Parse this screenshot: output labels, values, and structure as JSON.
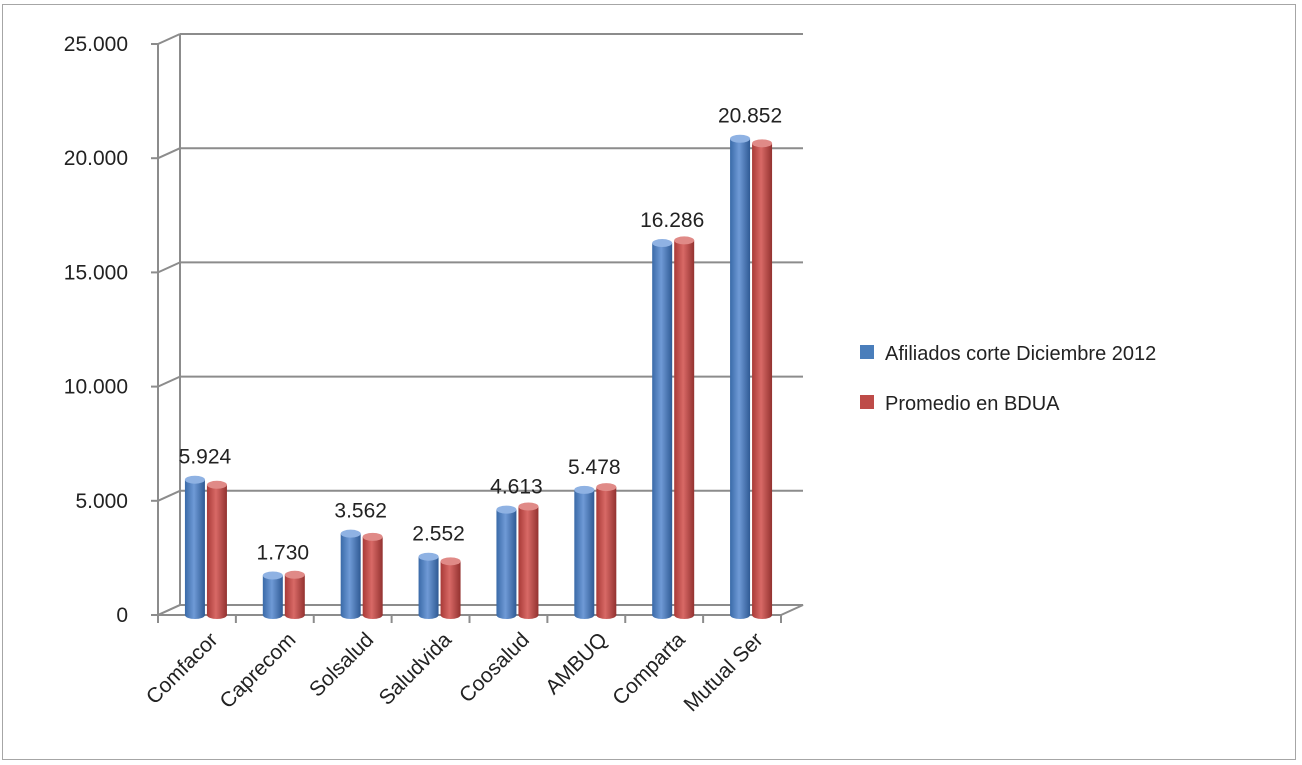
{
  "chart_data": {
    "type": "bar",
    "categories": [
      "Comfacor",
      "Caprecom",
      "Solsalud",
      "Saludvida",
      "Coosalud",
      "AMBUQ",
      "Comparta",
      "Mutual Ser"
    ],
    "series": [
      {
        "name": "Afiliados corte Diciembre 2012",
        "color": "#4a7ebb",
        "values": [
          5924,
          1730,
          3562,
          2552,
          4613,
          5478,
          16286,
          20852
        ],
        "labels": [
          "5.924",
          "1.730",
          "3.562",
          "2.552",
          "4.613",
          "5.478",
          "16.286",
          "20.852"
        ]
      },
      {
        "name": "Promedio en BDUA",
        "color": "#be4b48",
        "values": [
          5700,
          1760,
          3420,
          2350,
          4750,
          5600,
          16400,
          20650
        ]
      }
    ],
    "y_ticks": [
      {
        "value": 0,
        "label": "0"
      },
      {
        "value": 5000,
        "label": "5.000"
      },
      {
        "value": 10000,
        "label": "10.000"
      },
      {
        "value": 15000,
        "label": "15.000"
      },
      {
        "value": 20000,
        "label": "20.000"
      },
      {
        "value": 25000,
        "label": "25.000"
      }
    ],
    "ylim": [
      0,
      25000
    ],
    "grid": true,
    "legend_position": "right",
    "style": "3d-clustered-column"
  }
}
